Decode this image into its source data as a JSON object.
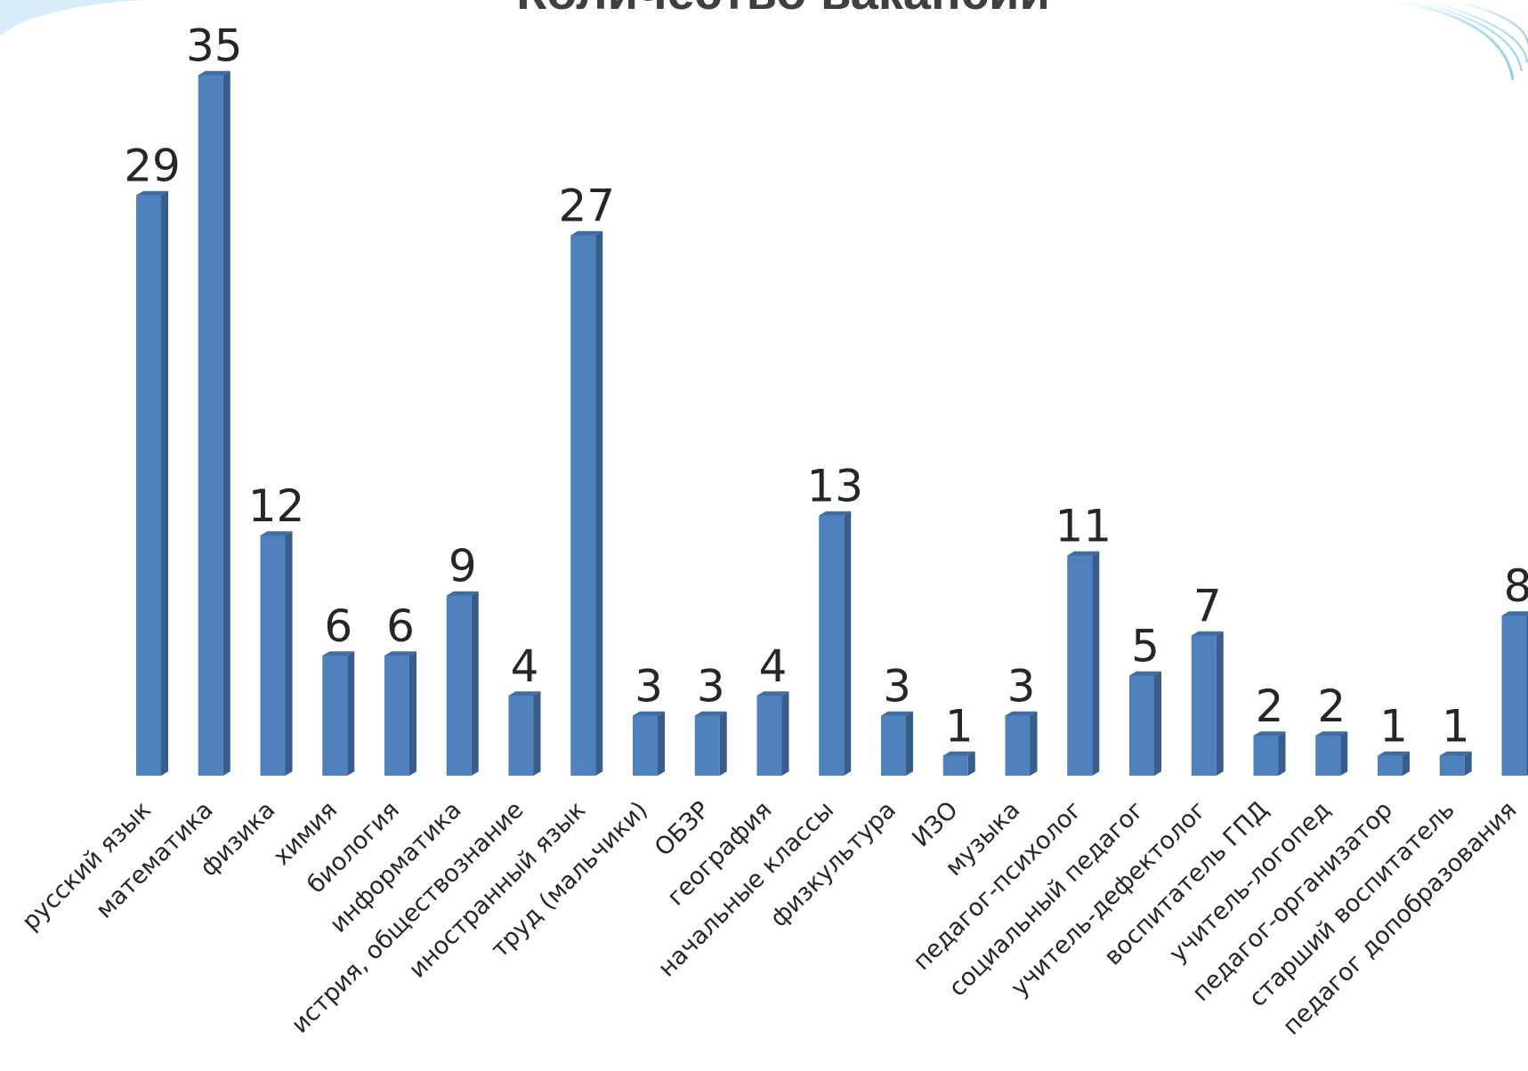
{
  "chart_data": {
    "type": "bar",
    "title": "Количество вакансий",
    "categories": [
      "русский язык",
      "математика",
      "физика",
      "химия",
      "биология",
      "информатика",
      "истрия, обществознание",
      "иностранный язык",
      "труд (мальчики)",
      "ОБЗР",
      "география",
      "начальные классы",
      "физкультура",
      "ИЗО",
      "музыка",
      "педагог-психолог",
      "социальный педагог",
      "учитель-дефектолог",
      "воспитатель ГПД",
      "учитель-логопед",
      "педагог-организатор",
      "старший воспитатель",
      "педагог допобразования"
    ],
    "values": [
      29,
      35,
      12,
      6,
      6,
      9,
      4,
      27,
      3,
      3,
      4,
      13,
      3,
      1,
      3,
      11,
      5,
      7,
      2,
      2,
      1,
      1,
      8
    ],
    "ylim": [
      0,
      35
    ],
    "grid": false,
    "legend": "none",
    "colors": {
      "bar_front": "#4f81bd",
      "bar_side": "#385d8a",
      "bar_top": "#3f6ea6",
      "decoration": "#bfe3f5"
    }
  }
}
